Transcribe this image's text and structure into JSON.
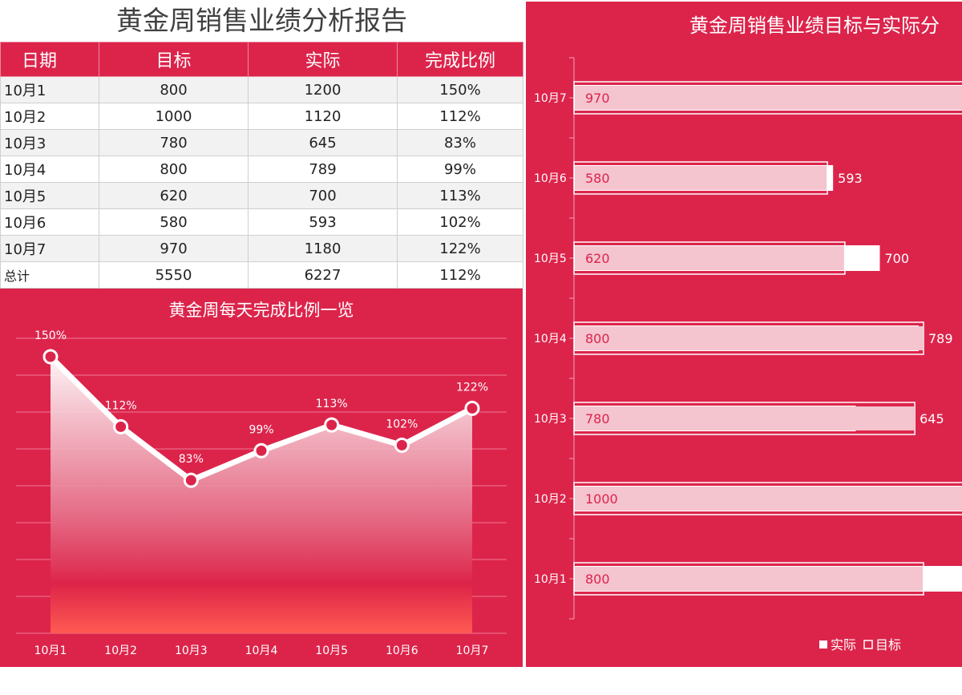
{
  "report": {
    "title": "黄金周销售业绩分析报告"
  },
  "table": {
    "headers": [
      "日期",
      "目标",
      "实际",
      "完成比例"
    ],
    "rows": [
      {
        "date": "10月1",
        "target": "800",
        "actual": "1200",
        "ratio": "150%"
      },
      {
        "date": "10月2",
        "target": "1000",
        "actual": "1120",
        "ratio": "112%"
      },
      {
        "date": "10月3",
        "target": "780",
        "actual": "645",
        "ratio": "83%"
      },
      {
        "date": "10月4",
        "target": "800",
        "actual": "789",
        "ratio": "99%"
      },
      {
        "date": "10月5",
        "target": "620",
        "actual": "700",
        "ratio": "113%"
      },
      {
        "date": "10月6",
        "target": "580",
        "actual": "593",
        "ratio": "102%"
      },
      {
        "date": "10月7",
        "target": "970",
        "actual": "1180",
        "ratio": "122%"
      },
      {
        "date": "总计",
        "target": "5550",
        "actual": "6227",
        "ratio": "112%"
      }
    ]
  },
  "colors": {
    "panel": "#dc244b",
    "header": "#dc244b",
    "target_bar": "#f4c4cf",
    "actual_bar": "#ffffff"
  },
  "chart_data": [
    {
      "type": "area",
      "title": "黄金周每天完成比例一览",
      "categories": [
        "10月1",
        "10月2",
        "10月3",
        "10月4",
        "10月5",
        "10月6",
        "10月7"
      ],
      "values": [
        150,
        112,
        83,
        99,
        113,
        102,
        122
      ],
      "value_labels": [
        "150%",
        "112%",
        "83%",
        "99%",
        "113%",
        "102%",
        "122%"
      ],
      "unit": "%",
      "ylim": [
        0,
        160
      ],
      "grid": true,
      "legend": "none"
    },
    {
      "type": "bar",
      "orientation": "horizontal",
      "title": "黄金周销售业绩目标与实际分",
      "categories": [
        "10月1",
        "10月2",
        "10月3",
        "10月4",
        "10月5",
        "10月6",
        "10月7"
      ],
      "series": [
        {
          "name": "实际",
          "values": [
            1200,
            1120,
            645,
            789,
            700,
            593,
            1180
          ]
        },
        {
          "name": "目标",
          "values": [
            800,
            1000,
            780,
            800,
            620,
            580,
            970
          ]
        }
      ],
      "target_labels": [
        "800",
        "1000",
        "780",
        "800",
        "620",
        "580",
        "970"
      ],
      "actual_labels": [
        "",
        "",
        "645",
        "789",
        "700",
        "593",
        ""
      ],
      "legend_labels": [
        "实际",
        "目标"
      ],
      "legend": "bottom-right",
      "grid": false
    }
  ]
}
